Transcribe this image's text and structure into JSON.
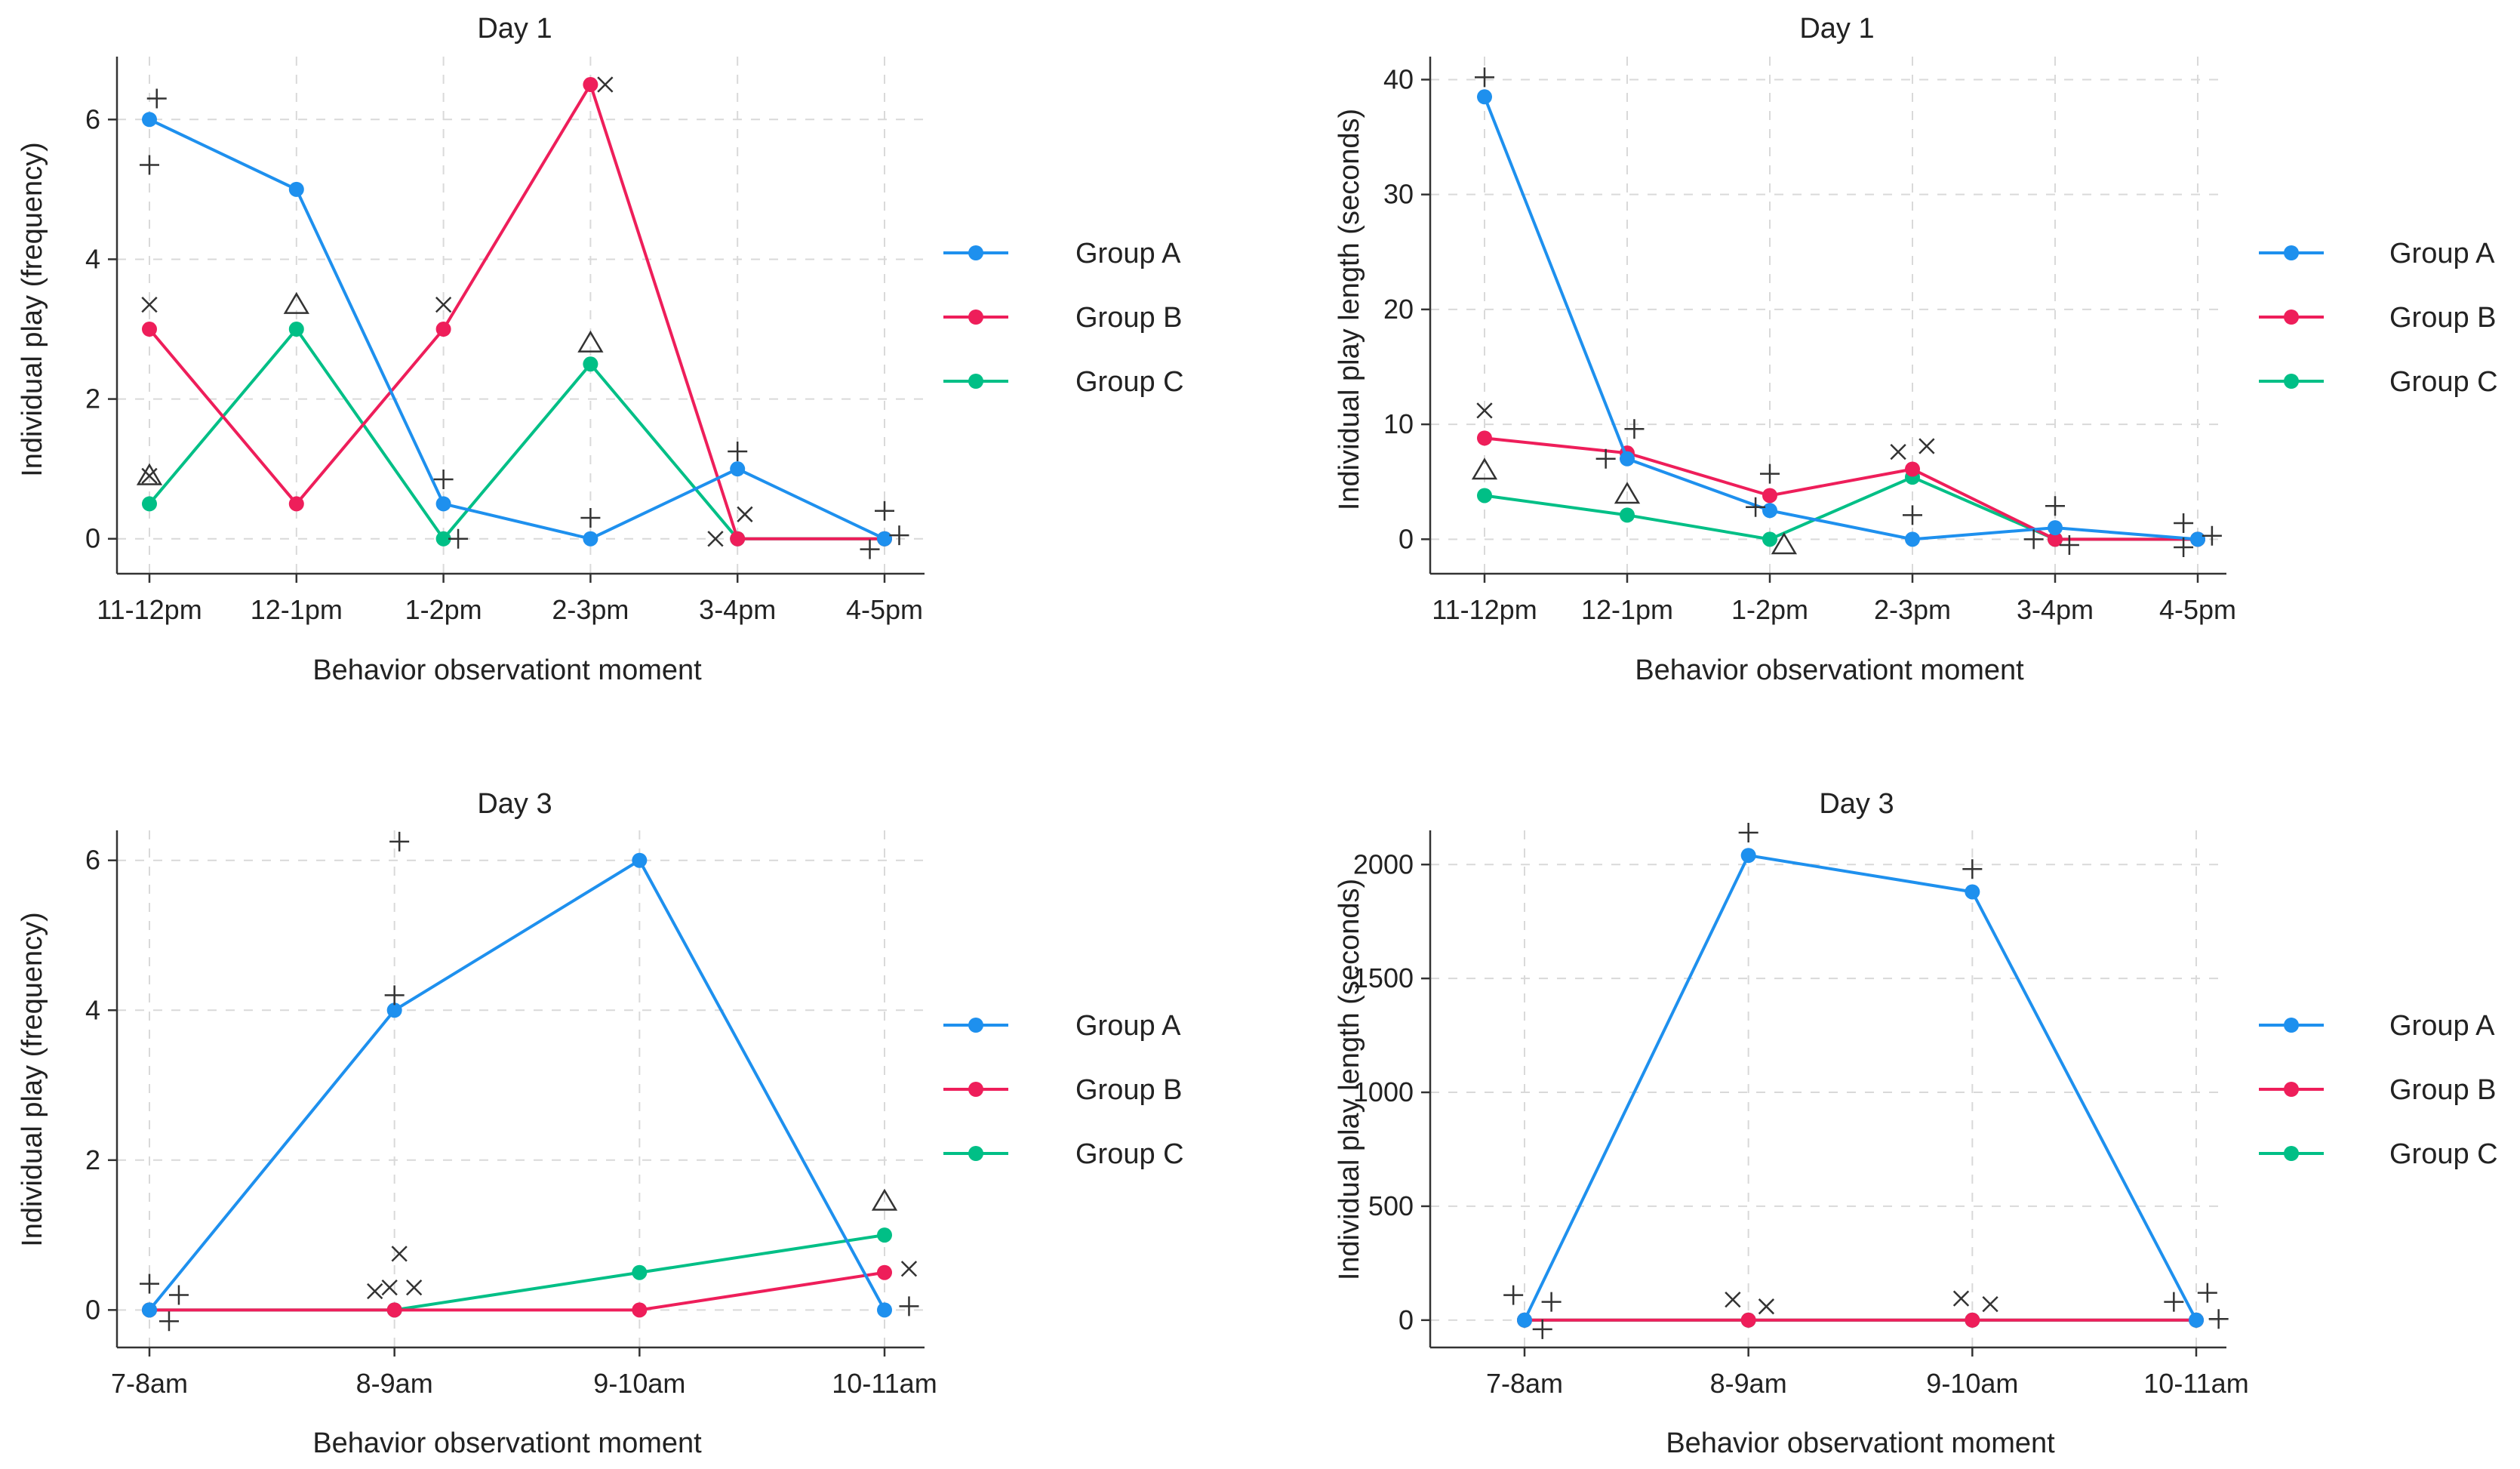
{
  "colors": {
    "Group A": "#1e90ee",
    "Group B": "#ee1e5a",
    "Group C": "#00bf86"
  },
  "chart_data": [
    {
      "type": "line",
      "title": "Day 1",
      "xlabel": "Behavior observationt moment",
      "ylabel": "Individual play (frequency)",
      "categories": [
        "11-12pm",
        "12-1pm",
        "1-2pm",
        "2-3pm",
        "3-4pm",
        "4-5pm"
      ],
      "ylim": [
        -0.5,
        6.9
      ],
      "yticks": [
        0,
        2,
        4,
        6
      ],
      "series": [
        {
          "name": "Group A",
          "values": [
            6,
            5,
            0.5,
            0,
            1,
            0
          ]
        },
        {
          "name": "Group B",
          "values": [
            3,
            0.5,
            3,
            6.5,
            0,
            0
          ]
        },
        {
          "name": "Group C",
          "values": [
            0.5,
            3,
            0,
            2.5,
            0,
            0
          ]
        }
      ],
      "annotations": [
        {
          "symbol": "+",
          "x": 0.05,
          "y": 6.3
        },
        {
          "symbol": "×",
          "x": 0.0,
          "y": 3.35
        },
        {
          "symbol": "△",
          "x": 0.0,
          "y": 0.9
        },
        {
          "symbol": "+",
          "x": 0.0,
          "y": 5.35
        },
        {
          "symbol": "×",
          "x": 0.0,
          "y": 0.9
        },
        {
          "symbol": "△",
          "x": 1.0,
          "y": 3.35
        },
        {
          "symbol": "+",
          "x": 2.0,
          "y": 0.85
        },
        {
          "symbol": "+",
          "x": 2.1,
          "y": 0.0
        },
        {
          "symbol": "×",
          "x": 2.0,
          "y": 3.35
        },
        {
          "symbol": "+",
          "x": 3.0,
          "y": 0.3
        },
        {
          "symbol": "×",
          "x": 3.1,
          "y": 6.5
        },
        {
          "symbol": "△",
          "x": 3.0,
          "y": 2.8
        },
        {
          "symbol": "+",
          "x": 4.0,
          "y": 1.25
        },
        {
          "symbol": "×",
          "x": 3.85,
          "y": 0.0
        },
        {
          "symbol": "×",
          "x": 4.05,
          "y": 0.35
        },
        {
          "symbol": "+",
          "x": 5.0,
          "y": 0.4
        },
        {
          "symbol": "+",
          "x": 4.9,
          "y": -0.15
        },
        {
          "symbol": "+",
          "x": 5.1,
          "y": 0.05
        }
      ],
      "legend_position": "right"
    },
    {
      "type": "line",
      "title": "Day 1",
      "xlabel": "Behavior observationt moment",
      "ylabel": "Individual play length (seconds)",
      "categories": [
        "11-12pm",
        "12-1pm",
        "1-2pm",
        "2-3pm",
        "3-4pm",
        "4-5pm"
      ],
      "ylim": [
        -3,
        42
      ],
      "yticks": [
        0,
        10,
        20,
        30,
        40
      ],
      "series": [
        {
          "name": "Group A",
          "values": [
            38.5,
            7,
            2.5,
            0,
            1,
            0
          ]
        },
        {
          "name": "Group B",
          "values": [
            8.8,
            7.5,
            3.8,
            6.1,
            0,
            0
          ]
        },
        {
          "name": "Group C",
          "values": [
            3.8,
            2.1,
            0,
            5.4,
            0,
            0
          ]
        }
      ],
      "annotations": [
        {
          "symbol": "+",
          "x": 0.0,
          "y": 40.2
        },
        {
          "symbol": "×",
          "x": 0.0,
          "y": 11.2
        },
        {
          "symbol": "△",
          "x": 0.0,
          "y": 6.0
        },
        {
          "symbol": "+",
          "x": 0.85,
          "y": 7.0
        },
        {
          "symbol": "+",
          "x": 1.05,
          "y": 9.6
        },
        {
          "symbol": "△",
          "x": 1.0,
          "y": 3.9
        },
        {
          "symbol": "+",
          "x": 2.0,
          "y": 5.7
        },
        {
          "symbol": "+",
          "x": 1.9,
          "y": 2.8
        },
        {
          "symbol": "△",
          "x": 2.1,
          "y": -0.5
        },
        {
          "symbol": "×",
          "x": 2.9,
          "y": 7.6
        },
        {
          "symbol": "×",
          "x": 3.1,
          "y": 8.1
        },
        {
          "symbol": "+",
          "x": 3.0,
          "y": 2.1
        },
        {
          "symbol": "+",
          "x": 4.0,
          "y": 2.9
        },
        {
          "symbol": "+",
          "x": 3.85,
          "y": 0.0
        },
        {
          "symbol": "+",
          "x": 4.1,
          "y": -0.5
        },
        {
          "symbol": "+",
          "x": 4.9,
          "y": 1.4
        },
        {
          "symbol": "+",
          "x": 4.9,
          "y": -0.7
        },
        {
          "symbol": "+",
          "x": 5.1,
          "y": 0.3
        }
      ],
      "legend_position": "right"
    },
    {
      "type": "line",
      "title": "Day 3",
      "xlabel": "Behavior observationt moment",
      "ylabel": "Individual play (frequency)",
      "categories": [
        "7-8am",
        "8-9am",
        "9-10am",
        "10-11am"
      ],
      "ylim": [
        -0.5,
        6.4
      ],
      "yticks": [
        0,
        2,
        4,
        6
      ],
      "series": [
        {
          "name": "Group A",
          "values": [
            0,
            4,
            6,
            0
          ]
        },
        {
          "name": "Group B",
          "values": [
            0,
            0,
            0,
            0.5
          ]
        },
        {
          "name": "Group C",
          "values": [
            0,
            0,
            0.5,
            1
          ]
        }
      ],
      "annotations": [
        {
          "symbol": "+",
          "x": 0.0,
          "y": 0.35
        },
        {
          "symbol": "+",
          "x": 0.12,
          "y": 0.2
        },
        {
          "symbol": "+",
          "x": 0.08,
          "y": -0.15
        },
        {
          "symbol": "+",
          "x": 1.0,
          "y": 4.2
        },
        {
          "symbol": "×",
          "x": 0.92,
          "y": 0.25
        },
        {
          "symbol": "×",
          "x": 1.08,
          "y": 0.3
        },
        {
          "symbol": "+",
          "x": 1.02,
          "y": 6.25
        },
        {
          "symbol": "×",
          "x": 1.02,
          "y": 0.75
        },
        {
          "symbol": "×",
          "x": 0.98,
          "y": 0.3
        },
        {
          "symbol": "△",
          "x": 3.0,
          "y": 1.45
        },
        {
          "symbol": "×",
          "x": 3.1,
          "y": 0.55
        },
        {
          "symbol": "+",
          "x": 3.1,
          "y": 0.05
        }
      ],
      "legend_position": "right"
    },
    {
      "type": "line",
      "title": "Day 3",
      "xlabel": "Behavior observationt moment",
      "ylabel": "Individual play length (seconds)",
      "categories": [
        "7-8am",
        "8-9am",
        "9-10am",
        "10-11am"
      ],
      "ylim": [
        -120,
        2150
      ],
      "yticks": [
        0,
        500,
        1000,
        1500,
        2000
      ],
      "series": [
        {
          "name": "Group A",
          "values": [
            0,
            2040,
            1880,
            0
          ]
        },
        {
          "name": "Group B",
          "values": [
            0,
            0,
            0,
            0
          ]
        },
        {
          "name": "Group C",
          "values": [
            0,
            0,
            0,
            0
          ]
        }
      ],
      "annotations": [
        {
          "symbol": "+",
          "x": -0.05,
          "y": 110
        },
        {
          "symbol": "+",
          "x": 0.12,
          "y": 80
        },
        {
          "symbol": "+",
          "x": 0.08,
          "y": -40
        },
        {
          "symbol": "+",
          "x": 1.0,
          "y": 2140
        },
        {
          "symbol": "×",
          "x": 0.93,
          "y": 90
        },
        {
          "symbol": "×",
          "x": 1.08,
          "y": 60
        },
        {
          "symbol": "+",
          "x": 2.0,
          "y": 1980
        },
        {
          "symbol": "×",
          "x": 1.95,
          "y": 95
        },
        {
          "symbol": "×",
          "x": 2.08,
          "y": 70
        },
        {
          "symbol": "+",
          "x": 2.9,
          "y": 80
        },
        {
          "symbol": "+",
          "x": 3.05,
          "y": 120
        },
        {
          "symbol": "+",
          "x": 3.1,
          "y": 5
        }
      ],
      "legend_position": "right"
    }
  ]
}
